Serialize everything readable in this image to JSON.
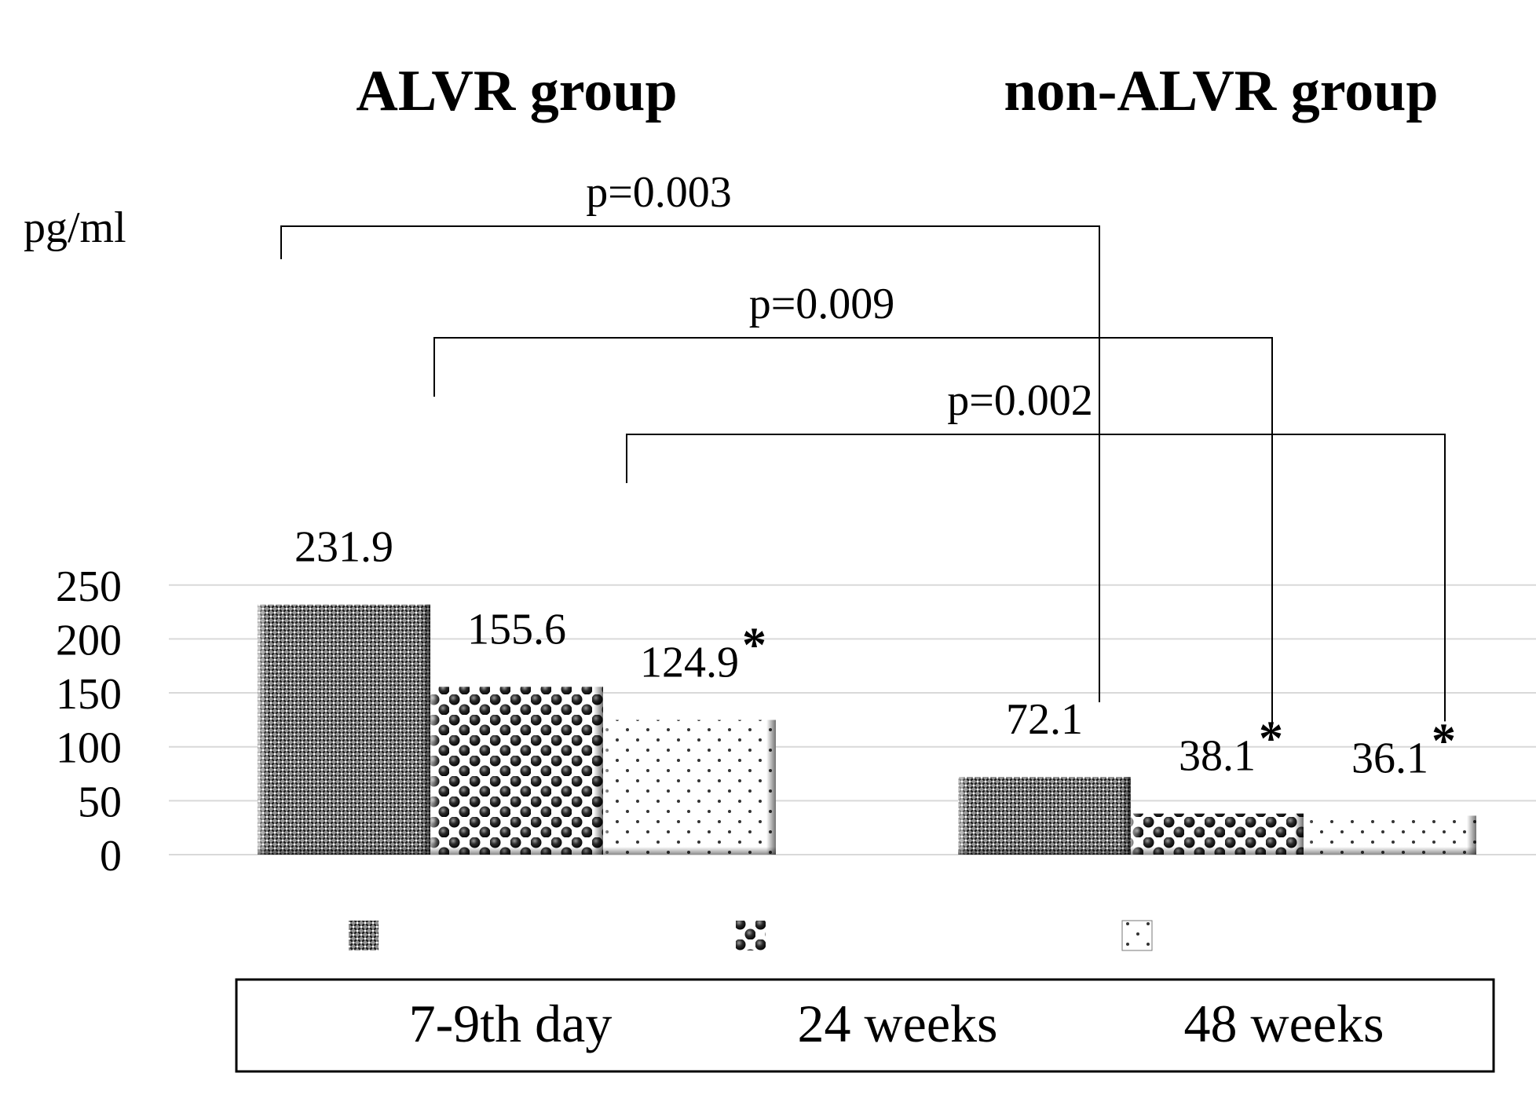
{
  "chart_data": {
    "type": "bar",
    "ylabel": "pg/ml",
    "ylim": [
      0,
      250
    ],
    "yticks": [
      "0",
      "50",
      "100",
      "150",
      "200",
      "250"
    ],
    "groups": [
      "ALVR group",
      "non-ALVR group"
    ],
    "series": [
      {
        "name": "7-9th day",
        "pattern": "crosshatch",
        "values": [
          231.9,
          72.1
        ],
        "labels": [
          "231.9",
          "72.1"
        ],
        "asterisk": [
          false,
          false
        ]
      },
      {
        "name": "24 weeks",
        "pattern": "spheres",
        "values": [
          155.6,
          38.1
        ],
        "labels": [
          "155.6",
          "38.1"
        ],
        "asterisk": [
          false,
          true
        ]
      },
      {
        "name": "48 weeks",
        "pattern": "dots",
        "values": [
          124.9,
          36.1
        ],
        "labels": [
          "124.9",
          "36.1"
        ],
        "asterisk": [
          true,
          true
        ]
      }
    ],
    "comparisons": [
      {
        "series": "7-9th day",
        "label": "p=0.003"
      },
      {
        "series": "24 weeks",
        "label": "p=0.009"
      },
      {
        "series": "48 weeks",
        "label": "p=0.002"
      }
    ],
    "asterisk_symbol": "*",
    "legend_position": "bottom",
    "grid": true,
    "colors": {
      "grid": "#d9d9d9",
      "bar_dark": "#1a1a1a",
      "bar_mid": "#8c8c8c",
      "bar_light": "#ffffff",
      "text": "#000000"
    }
  }
}
